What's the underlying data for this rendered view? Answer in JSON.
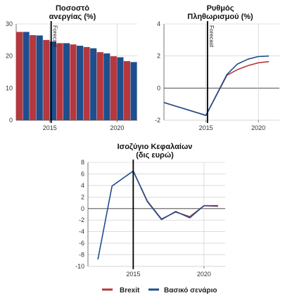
{
  "colors": {
    "brexit": "#b5383e",
    "baseline": "#1f4e8c"
  },
  "chart_data": [
    {
      "id": "unemployment",
      "type": "bar",
      "title": "Ποσοστό\nανεργίας (%)",
      "x": [
        2013,
        2014,
        2015,
        2016,
        2017,
        2018,
        2019,
        2020,
        2021
      ],
      "xticks": [
        2015,
        2020
      ],
      "ylim": [
        0,
        30
      ],
      "yticks": [
        0,
        10,
        20,
        30
      ],
      "grid": true,
      "series": [
        {
          "name": "Brexit",
          "color": "#b5383e",
          "values": [
            27.5,
            26.5,
            25.0,
            24.0,
            23.6,
            22.8,
            21.2,
            19.9,
            18.4
          ]
        },
        {
          "name": "Βασικό σενάριο",
          "color": "#1f4e8c",
          "values": [
            27.5,
            26.4,
            24.5,
            24.0,
            23.2,
            22.4,
            20.8,
            19.6,
            18.1
          ]
        }
      ],
      "forecast_x": 2015,
      "forecast_label": "Forecast"
    },
    {
      "id": "inflation",
      "type": "line",
      "title": "Ρυθμός\nΠληθωρισμού (%)",
      "xlim": [
        2011,
        2022
      ],
      "xticks": [
        2015,
        2020
      ],
      "ylim": [
        -2,
        4
      ],
      "yticks": [
        -2,
        0,
        2,
        4
      ],
      "grid": true,
      "series": [
        {
          "name": "Brexit",
          "color": "#b5383e",
          "x": [
            2011,
            2015,
            2017,
            2018,
            2019,
            2020,
            2021
          ],
          "y": [
            -0.9,
            -1.7,
            0.8,
            1.15,
            1.4,
            1.58,
            1.65
          ]
        },
        {
          "name": "Βασικό σενάριο",
          "color": "#1f4e8c",
          "x": [
            2011,
            2015,
            2017,
            2018,
            2019,
            2020,
            2021
          ],
          "y": [
            -0.9,
            -1.7,
            0.85,
            1.5,
            1.8,
            1.97,
            2.0
          ]
        }
      ],
      "forecast_x": 2015,
      "forecast_label": "Forecast"
    },
    {
      "id": "current_account",
      "type": "line",
      "title": "Ισοζύγιο Κεφαλαίων\n(δις ευρώ)",
      "xlim": [
        2011.8,
        2021.5
      ],
      "xticks": [
        2015,
        2020
      ],
      "ylim": [
        -10,
        8
      ],
      "yticks": [
        -10,
        -8,
        -6,
        -4,
        -2,
        0,
        2,
        4,
        6,
        8
      ],
      "grid": true,
      "series": [
        {
          "name": "Brexit",
          "color": "#b5383e",
          "x": [
            2015,
            2016,
            2017,
            2018,
            2019,
            2020,
            2021
          ],
          "y": [
            6.5,
            1.3,
            -1.8,
            -0.6,
            -1.4,
            0.5,
            0.4
          ]
        },
        {
          "name": "Βασικό σενάριο",
          "color": "#1f4e8c",
          "x": [
            2012.5,
            2013.5,
            2015,
            2016,
            2017,
            2018,
            2019,
            2020,
            2021
          ],
          "y": [
            -8.8,
            3.9,
            6.5,
            1.2,
            -1.9,
            -0.5,
            -1.6,
            0.5,
            0.5
          ]
        }
      ],
      "forecast_x": 2015
    }
  ],
  "legend": [
    {
      "label": "Brexit",
      "color": "#b5383e"
    },
    {
      "label": "Βασικό σενάριο",
      "color": "#1f4e8c"
    }
  ]
}
